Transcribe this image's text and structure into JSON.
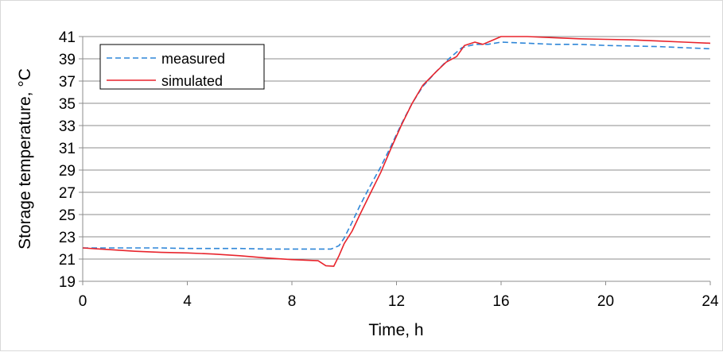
{
  "chart_data": {
    "type": "line",
    "title": "",
    "xlabel": "Time, h",
    "ylabel": "Storage temperature, °C",
    "xlim": [
      0,
      24
    ],
    "ylim": [
      19,
      41
    ],
    "x_ticks": [
      0,
      4,
      8,
      12,
      16,
      20,
      24
    ],
    "y_ticks": [
      19,
      21,
      23,
      25,
      27,
      29,
      31,
      33,
      35,
      37,
      39,
      41
    ],
    "grid": "horizontal",
    "legend_position": "top-left",
    "series": [
      {
        "name": "measured",
        "color": "#2e86d8",
        "dash": "dashed",
        "x": [
          0,
          1,
          2,
          3,
          4,
          5,
          6,
          7,
          8,
          9,
          9.5,
          9.8,
          10,
          10.3,
          10.6,
          11,
          11.4,
          11.8,
          12.2,
          12.6,
          13,
          13.5,
          14,
          14.5,
          15,
          15.5,
          16,
          17,
          18,
          19,
          20,
          21,
          22,
          23,
          24
        ],
        "y": [
          22.0,
          22.0,
          22.0,
          22.0,
          21.95,
          21.95,
          21.95,
          21.9,
          21.9,
          21.9,
          21.9,
          22.2,
          22.9,
          24.3,
          25.8,
          27.6,
          29.3,
          31.2,
          33.2,
          35.0,
          36.5,
          37.8,
          39.0,
          40.0,
          40.3,
          40.3,
          40.5,
          40.4,
          40.3,
          40.3,
          40.2,
          40.15,
          40.1,
          40.0,
          39.9
        ]
      },
      {
        "name": "simulated",
        "color": "#e8242c",
        "dash": "solid",
        "x": [
          0,
          1,
          2,
          3,
          4,
          5,
          6,
          7,
          8,
          9,
          9.3,
          9.6,
          9.8,
          10,
          10.3,
          10.6,
          11,
          11.4,
          11.8,
          12.2,
          12.6,
          13,
          13.5,
          13.9,
          14.3,
          14.6,
          15,
          15.3,
          15.6,
          16,
          17,
          18,
          19,
          20,
          21,
          22,
          23,
          24
        ],
        "y": [
          22.0,
          21.85,
          21.7,
          21.6,
          21.55,
          21.45,
          21.3,
          21.1,
          20.95,
          20.85,
          20.4,
          20.35,
          21.3,
          22.4,
          23.5,
          25.0,
          26.9,
          28.8,
          31.0,
          33.1,
          35.0,
          36.6,
          37.8,
          38.7,
          39.2,
          40.2,
          40.5,
          40.3,
          40.6,
          41.0,
          41.0,
          40.9,
          40.8,
          40.75,
          40.7,
          40.6,
          40.5,
          40.4
        ]
      }
    ]
  }
}
